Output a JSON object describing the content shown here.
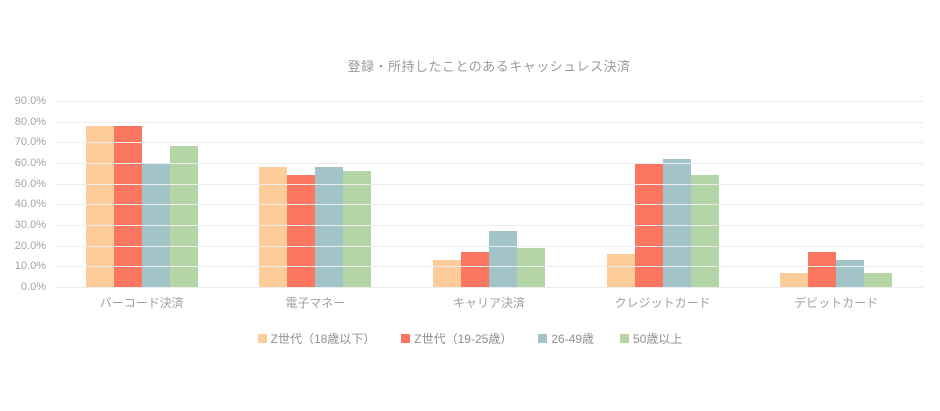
{
  "page": {
    "background": "#ffffff",
    "text_color": "#9b9b9b",
    "gridline_color": "#ececec"
  },
  "chart_data": {
    "type": "bar",
    "title": "登録・所持したことのあるキャッシュレス決済",
    "categories": [
      "バーコード決済",
      "電子マネー",
      "キャリア決済",
      "クレジットカード",
      "デビットカード"
    ],
    "series": [
      {
        "name": "Z世代（18歳以下）",
        "color": "#FCCD9B",
        "values": [
          78,
          58,
          13,
          16,
          7
        ]
      },
      {
        "name": "Z世代（19-25歳）",
        "color": "#FA7661",
        "values": [
          78,
          54,
          17,
          60,
          17
        ]
      },
      {
        "name": "26-49歳",
        "color": "#A2C4C9",
        "values": [
          60,
          58,
          27,
          62,
          13
        ]
      },
      {
        "name": "50歳以上",
        "color": "#B4D5A5",
        "values": [
          68,
          56,
          19,
          54,
          7
        ]
      }
    ],
    "y_ticks": [
      "0.0%",
      "10.0%",
      "20.0%",
      "30.0%",
      "40.0%",
      "50.0%",
      "60.0%",
      "70.0%",
      "80.0%",
      "90.0%"
    ],
    "ylim": [
      0,
      90
    ],
    "xlabel": "",
    "ylabel": "",
    "grid": true,
    "legend_position": "bottom"
  }
}
